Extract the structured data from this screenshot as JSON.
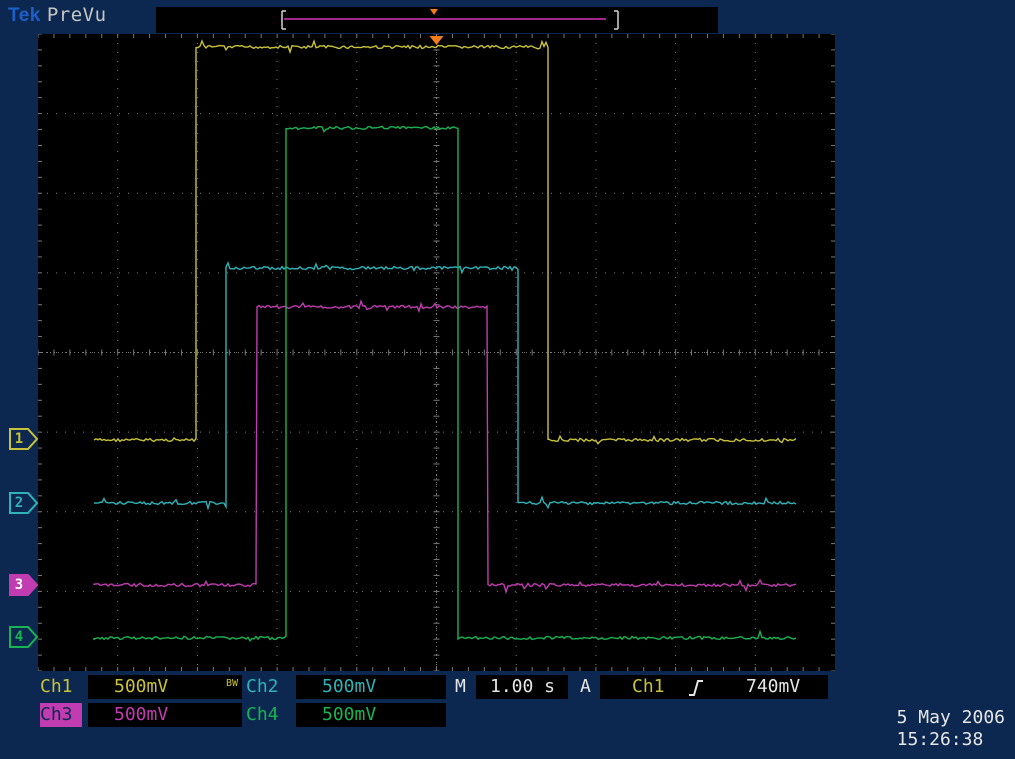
{
  "topbar": {
    "brand": "Tek",
    "mode": "PreVu"
  },
  "channels": [
    {
      "id": "1",
      "color": "#c8c23a",
      "label": "Ch1",
      "scale": "500mV"
    },
    {
      "id": "2",
      "color": "#2fb3b8",
      "label": "Ch2",
      "scale": "500mV"
    },
    {
      "id": "3",
      "color": "#c03cb0",
      "label": "Ch3",
      "scale": "500mV"
    },
    {
      "id": "4",
      "color": "#19b352",
      "label": "Ch4",
      "scale": "500mV"
    }
  ],
  "status": {
    "ch1_label": "Ch1",
    "ch1_scale": "500mV",
    "bw_label": "BW",
    "ch2_label": "Ch2",
    "ch2_scale": "500mV",
    "ch3_label": "Ch3",
    "ch3_scale": "500mV",
    "ch4_label": "Ch4",
    "ch4_scale": "500mV",
    "timebase_label": "M",
    "timebase_value": "1.00 s",
    "trigger_label": "A",
    "trigger_source": "Ch1",
    "trigger_slope_icon": "rising-edge-icon",
    "trigger_level": "740mV",
    "date": "5 May 2006",
    "time": "15:26:38"
  },
  "colors": {
    "background": "#0d2850",
    "screen": "#000000",
    "graticule": "#7a7a7a",
    "trigger_marker": "#f07c1c",
    "record_bracket": "#d6d6d6",
    "record_line": "#a0288c"
  }
}
